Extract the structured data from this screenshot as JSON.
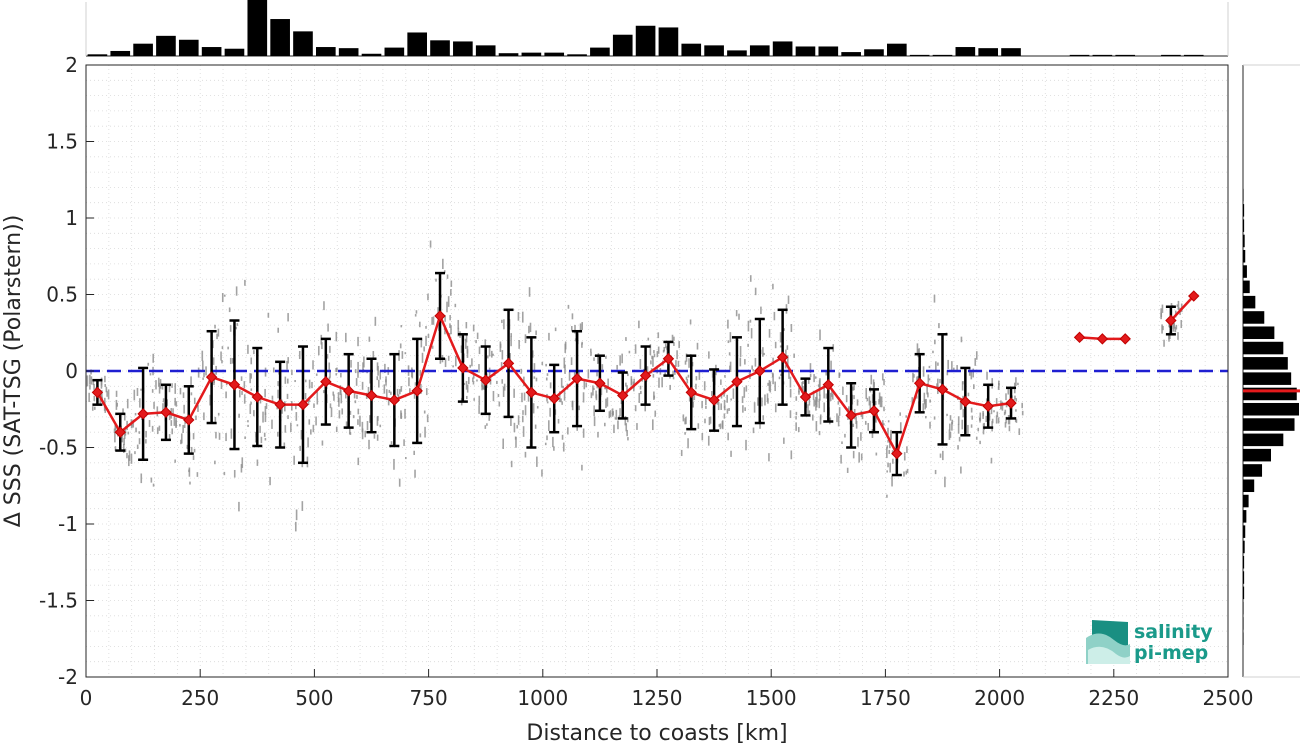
{
  "chart_data": {
    "type": "scatter",
    "xlabel": "Distance to coasts [km]",
    "ylabel": "Δ SSS (SAT-TSG (Polarstern))",
    "xlim": [
      0,
      2500
    ],
    "ylim": [
      -2,
      2
    ],
    "xticks": [
      0,
      250,
      500,
      750,
      1000,
      1250,
      1500,
      1750,
      2000,
      2250,
      2500
    ],
    "yticks": [
      -2,
      -1.5,
      -1,
      -0.5,
      0,
      0.5,
      1,
      1.5,
      2
    ],
    "grid": true,
    "reference_line": {
      "y": 0,
      "color": "#1f1fd1",
      "style": "dashed"
    },
    "colors": {
      "mean": "#e31a1c",
      "errorbar": "#000000",
      "scatter": "#8c8c8c",
      "reference": "#1f1fd1",
      "histogram": "#000000"
    },
    "series": [
      {
        "x": [
          25,
          75,
          125,
          175,
          225,
          275,
          325,
          375,
          425,
          475,
          525,
          575,
          625,
          675,
          725,
          775,
          825,
          875,
          925,
          975,
          1025,
          1075,
          1125,
          1175,
          1225,
          1275,
          1325,
          1375,
          1425,
          1475,
          1525,
          1575,
          1625,
          1675,
          1725,
          1775,
          1825,
          1875,
          1925,
          1975,
          2025,
          2175,
          2225,
          2275,
          2375,
          2425
        ],
        "mean": [
          -0.14,
          -0.4,
          -0.28,
          -0.27,
          -0.32,
          -0.04,
          -0.09,
          -0.17,
          -0.22,
          -0.22,
          -0.07,
          -0.13,
          -0.16,
          -0.19,
          -0.13,
          0.36,
          0.02,
          -0.06,
          0.05,
          -0.14,
          -0.18,
          -0.05,
          -0.08,
          -0.16,
          -0.03,
          0.08,
          -0.14,
          -0.19,
          -0.07,
          0.0,
          0.09,
          -0.17,
          -0.09,
          -0.29,
          -0.26,
          -0.54,
          -0.08,
          -0.12,
          -0.2,
          -0.23,
          -0.21,
          0.22,
          0.21,
          0.21,
          0.33,
          0.49
        ],
        "std": [
          0.08,
          0.12,
          0.3,
          0.18,
          0.22,
          0.3,
          0.42,
          0.32,
          0.28,
          0.38,
          0.28,
          0.24,
          0.24,
          0.3,
          0.34,
          0.28,
          0.22,
          0.22,
          0.35,
          0.36,
          0.22,
          0.31,
          0.18,
          0.15,
          0.19,
          0.11,
          0.24,
          0.2,
          0.29,
          0.34,
          0.31,
          0.12,
          0.24,
          0.21,
          0.14,
          0.14,
          0.19,
          0.36,
          0.22,
          0.14,
          0.1,
          0.0,
          0.0,
          0.0,
          0.09,
          0.0
        ]
      }
    ],
    "top_histogram": {
      "bin_centers": [
        25,
        75,
        125,
        175,
        225,
        275,
        325,
        375,
        425,
        475,
        525,
        575,
        625,
        675,
        725,
        775,
        825,
        875,
        925,
        975,
        1025,
        1075,
        1125,
        1175,
        1225,
        1275,
        1325,
        1375,
        1425,
        1475,
        1525,
        1575,
        1625,
        1675,
        1725,
        1775,
        1825,
        1875,
        1925,
        1975,
        2025,
        2175,
        2225,
        2275,
        2375,
        2425
      ],
      "relative_counts": [
        0.03,
        0.09,
        0.22,
        0.36,
        0.29,
        0.16,
        0.13,
        1.0,
        0.66,
        0.44,
        0.16,
        0.14,
        0.04,
        0.15,
        0.42,
        0.28,
        0.26,
        0.19,
        0.05,
        0.06,
        0.06,
        0.03,
        0.15,
        0.38,
        0.54,
        0.51,
        0.22,
        0.19,
        0.1,
        0.19,
        0.26,
        0.17,
        0.17,
        0.07,
        0.12,
        0.22,
        0.02,
        0.02,
        0.16,
        0.14,
        0.14,
        0.02,
        0.02,
        0.02,
        0.02,
        0.02
      ]
    },
    "right_histogram": {
      "bin_centers": [
        -1.75,
        -1.65,
        -1.55,
        -1.45,
        -1.35,
        -1.25,
        -1.15,
        -1.05,
        -0.95,
        -0.85,
        -0.75,
        -0.65,
        -0.55,
        -0.45,
        -0.35,
        -0.25,
        -0.15,
        -0.05,
        0.05,
        0.15,
        0.25,
        0.35,
        0.45,
        0.55,
        0.65,
        0.75,
        0.85,
        0.95,
        1.05,
        1.15
      ],
      "relative_counts": [
        0.01,
        0.01,
        0.01,
        0.02,
        0.02,
        0.02,
        0.03,
        0.04,
        0.06,
        0.1,
        0.2,
        0.34,
        0.5,
        0.72,
        0.92,
        1.0,
        0.96,
        0.86,
        0.8,
        0.72,
        0.56,
        0.38,
        0.22,
        0.12,
        0.07,
        0.04,
        0.03,
        0.02,
        0.02,
        0.01
      ],
      "mean_line": -0.13
    }
  },
  "logo": {
    "line1": "salinity",
    "line2": "pi-mep"
  }
}
